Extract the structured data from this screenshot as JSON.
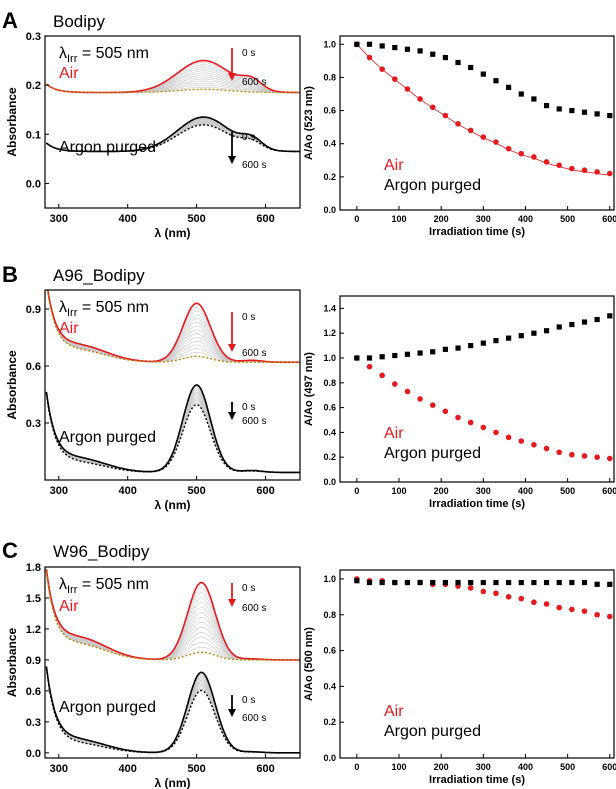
{
  "panels": [
    {
      "letter": "A",
      "title": "Bodipy",
      "irr_prefix": "λ",
      "irr_sub": "Irr",
      "irr_value": "= 505 nm",
      "air_label": "Air",
      "argon_label": "Argon purged",
      "time_start": "0 s",
      "time_end": "600 s",
      "spectrum": {
        "xlabel": "λ (nm)",
        "ylabel": "Absorbance",
        "xlim": [
          280,
          650
        ],
        "ylim": [
          -0.05,
          0.3
        ],
        "xticks": [
          "300",
          "400",
          "500",
          "600"
        ],
        "xtick_values": [
          300,
          400,
          500,
          600
        ],
        "yticks": [
          "0.0",
          "0.1",
          "0.2",
          "0.3"
        ],
        "ytick_values": [
          0.0,
          0.1,
          0.2,
          0.3
        ],
        "air_base": 0.185,
        "air_peak": 0.25,
        "argon_base": 0.065,
        "argon_peak": 0.135,
        "peak_nm": 510
      },
      "kinetics": {
        "ylabel": "A/Ao  (523 nm)",
        "xlabel": "Irradiation time (s)",
        "xlim": [
          -40,
          610
        ],
        "ylim": [
          0.0,
          1.05
        ],
        "xticks": [
          "0",
          "100",
          "200",
          "300",
          "400",
          "500",
          "600"
        ],
        "xtick_values": [
          0,
          100,
          200,
          300,
          400,
          500,
          600
        ],
        "yticks": [
          "0.0",
          "0.2",
          "0.4",
          "0.6",
          "0.8",
          "1.0"
        ],
        "ytick_values": [
          0.0,
          0.2,
          0.4,
          0.6,
          0.8,
          1.0
        ],
        "air_label": "Air",
        "argon_label": "Argon purged",
        "fit_air": true
      }
    },
    {
      "letter": "B",
      "title": "A96_Bodipy",
      "irr_prefix": "λ",
      "irr_sub": "Irr",
      "irr_value": "= 505 nm",
      "air_label": "Air",
      "argon_label": "Argon purged",
      "time_start": "0 s",
      "time_end": "600 s",
      "spectrum": {
        "xlabel": "λ (nm)",
        "ylabel": "Absorbance",
        "xlim": [
          280,
          650
        ],
        "ylim": [
          0.0,
          1.0
        ],
        "xticks": [
          "300",
          "400",
          "500",
          "600"
        ],
        "xtick_values": [
          300,
          400,
          500,
          600
        ],
        "yticks": [
          "0.3",
          "0.6",
          "0.9"
        ],
        "ytick_values": [
          0.3,
          0.6,
          0.9
        ],
        "air_base": 0.62,
        "air_peak": 0.93,
        "argon_base": 0.04,
        "argon_peak": 0.5,
        "peak_nm": 500
      },
      "kinetics": {
        "ylabel": "A/Ao  (497 nm)",
        "xlabel": "Irradiation time (s)",
        "xlim": [
          -40,
          610
        ],
        "ylim": [
          0.0,
          1.5
        ],
        "xticks": [
          "0",
          "100",
          "200",
          "300",
          "400",
          "500",
          "600"
        ],
        "xtick_values": [
          0,
          100,
          200,
          300,
          400,
          500,
          600
        ],
        "yticks": [
          "0.0",
          "0.2",
          "0.4",
          "0.6",
          "0.8",
          "1.0",
          "1.2",
          "1.4"
        ],
        "ytick_values": [
          0.0,
          0.2,
          0.4,
          0.6,
          0.8,
          1.0,
          1.2,
          1.4
        ],
        "air_label": "Air",
        "argon_label": "Argon purged",
        "fit_air": false
      }
    },
    {
      "letter": "C",
      "title": "W96_Bodipy",
      "irr_prefix": "λ",
      "irr_sub": "Irr",
      "irr_value": "= 505 nm",
      "air_label": "Air",
      "argon_label": "Argon purged",
      "time_start": "0 s",
      "time_end": "600 s",
      "spectrum": {
        "xlabel": "λ (nm)",
        "ylabel": "Absorbance",
        "xlim": [
          280,
          650
        ],
        "ylim": [
          -0.05,
          1.8
        ],
        "xticks": [
          "300",
          "400",
          "500",
          "600"
        ],
        "xtick_values": [
          300,
          400,
          500,
          600
        ],
        "yticks": [
          "0.0",
          "0.3",
          "0.6",
          "0.9",
          "1.2",
          "1.5",
          "1.8"
        ],
        "ytick_values": [
          0.0,
          0.3,
          0.6,
          0.9,
          1.2,
          1.5,
          1.8
        ],
        "air_base": 0.9,
        "air_peak": 1.65,
        "argon_base": 0.0,
        "argon_peak": 0.78,
        "peak_nm": 507
      },
      "kinetics": {
        "ylabel": "A/Ao  (500 nm)",
        "xlabel": "Irradiation time (s)",
        "xlim": [
          -40,
          610
        ],
        "ylim": [
          0.0,
          1.05
        ],
        "xticks": [
          "0",
          "100",
          "200",
          "300",
          "400",
          "500",
          "600"
        ],
        "xtick_values": [
          0,
          100,
          200,
          300,
          400,
          500,
          600
        ],
        "yticks": [
          "0.0",
          "0.2",
          "0.4",
          "0.6",
          "0.8",
          "1.0"
        ],
        "ytick_values": [
          0.0,
          0.2,
          0.4,
          0.6,
          0.8,
          1.0
        ],
        "air_label": "Air",
        "argon_label": "Argon purged",
        "fit_air": false
      }
    }
  ],
  "colors": {
    "air": "#e41a1c",
    "argon": "#000000",
    "fill": "#bdbdbd"
  },
  "chart_data": [
    {
      "type": "scatter",
      "panel": "A",
      "xlabel": "Irradiation time (s)",
      "ylabel": "A/Ao  (523 nm)",
      "x": [
        0,
        30,
        60,
        90,
        120,
        150,
        180,
        210,
        240,
        270,
        300,
        330,
        360,
        390,
        420,
        450,
        480,
        510,
        540,
        570,
        600
      ],
      "series": [
        {
          "name": "Air",
          "values": [
            1.0,
            0.92,
            0.85,
            0.79,
            0.73,
            0.67,
            0.62,
            0.57,
            0.52,
            0.48,
            0.44,
            0.41,
            0.37,
            0.34,
            0.32,
            0.29,
            0.27,
            0.25,
            0.24,
            0.23,
            0.22
          ]
        },
        {
          "name": "Argon purged",
          "values": [
            1.0,
            1.0,
            0.99,
            0.98,
            0.97,
            0.96,
            0.94,
            0.92,
            0.89,
            0.86,
            0.82,
            0.78,
            0.74,
            0.7,
            0.67,
            0.63,
            0.61,
            0.6,
            0.59,
            0.58,
            0.57
          ]
        }
      ],
      "xlim": [
        -40,
        610
      ],
      "ylim": [
        0.0,
        1.05
      ]
    },
    {
      "type": "scatter",
      "panel": "B",
      "xlabel": "Irradiation time (s)",
      "ylabel": "A/Ao  (497 nm)",
      "x": [
        0,
        30,
        60,
        90,
        120,
        150,
        180,
        210,
        240,
        270,
        300,
        330,
        360,
        390,
        420,
        450,
        480,
        510,
        540,
        570,
        600
      ],
      "series": [
        {
          "name": "Air",
          "values": [
            1.0,
            0.93,
            0.86,
            0.79,
            0.73,
            0.67,
            0.62,
            0.57,
            0.52,
            0.48,
            0.44,
            0.4,
            0.36,
            0.33,
            0.3,
            0.27,
            0.24,
            0.22,
            0.21,
            0.2,
            0.19
          ]
        },
        {
          "name": "Argon purged",
          "values": [
            1.0,
            1.0,
            1.01,
            1.02,
            1.03,
            1.04,
            1.05,
            1.07,
            1.08,
            1.1,
            1.12,
            1.14,
            1.16,
            1.18,
            1.2,
            1.22,
            1.25,
            1.27,
            1.29,
            1.31,
            1.34
          ]
        }
      ],
      "xlim": [
        -40,
        610
      ],
      "ylim": [
        0.0,
        1.5
      ]
    },
    {
      "type": "scatter",
      "panel": "C",
      "xlabel": "Irradiation time (s)",
      "ylabel": "A/Ao  (500 nm)",
      "x": [
        0,
        30,
        60,
        90,
        120,
        150,
        180,
        210,
        240,
        270,
        300,
        330,
        360,
        390,
        420,
        450,
        480,
        510,
        540,
        570,
        600
      ],
      "series": [
        {
          "name": "Air",
          "values": [
            1.0,
            0.99,
            0.99,
            0.98,
            0.98,
            0.98,
            0.97,
            0.97,
            0.96,
            0.95,
            0.93,
            0.92,
            0.9,
            0.89,
            0.87,
            0.86,
            0.84,
            0.83,
            0.82,
            0.8,
            0.79
          ]
        },
        {
          "name": "Argon purged",
          "values": [
            0.99,
            0.98,
            0.98,
            0.98,
            0.98,
            0.98,
            0.98,
            0.98,
            0.98,
            0.98,
            0.98,
            0.98,
            0.98,
            0.98,
            0.98,
            0.98,
            0.98,
            0.98,
            0.98,
            0.97,
            0.97
          ]
        }
      ],
      "xlim": [
        -40,
        610
      ],
      "ylim": [
        0.0,
        1.05
      ]
    }
  ]
}
